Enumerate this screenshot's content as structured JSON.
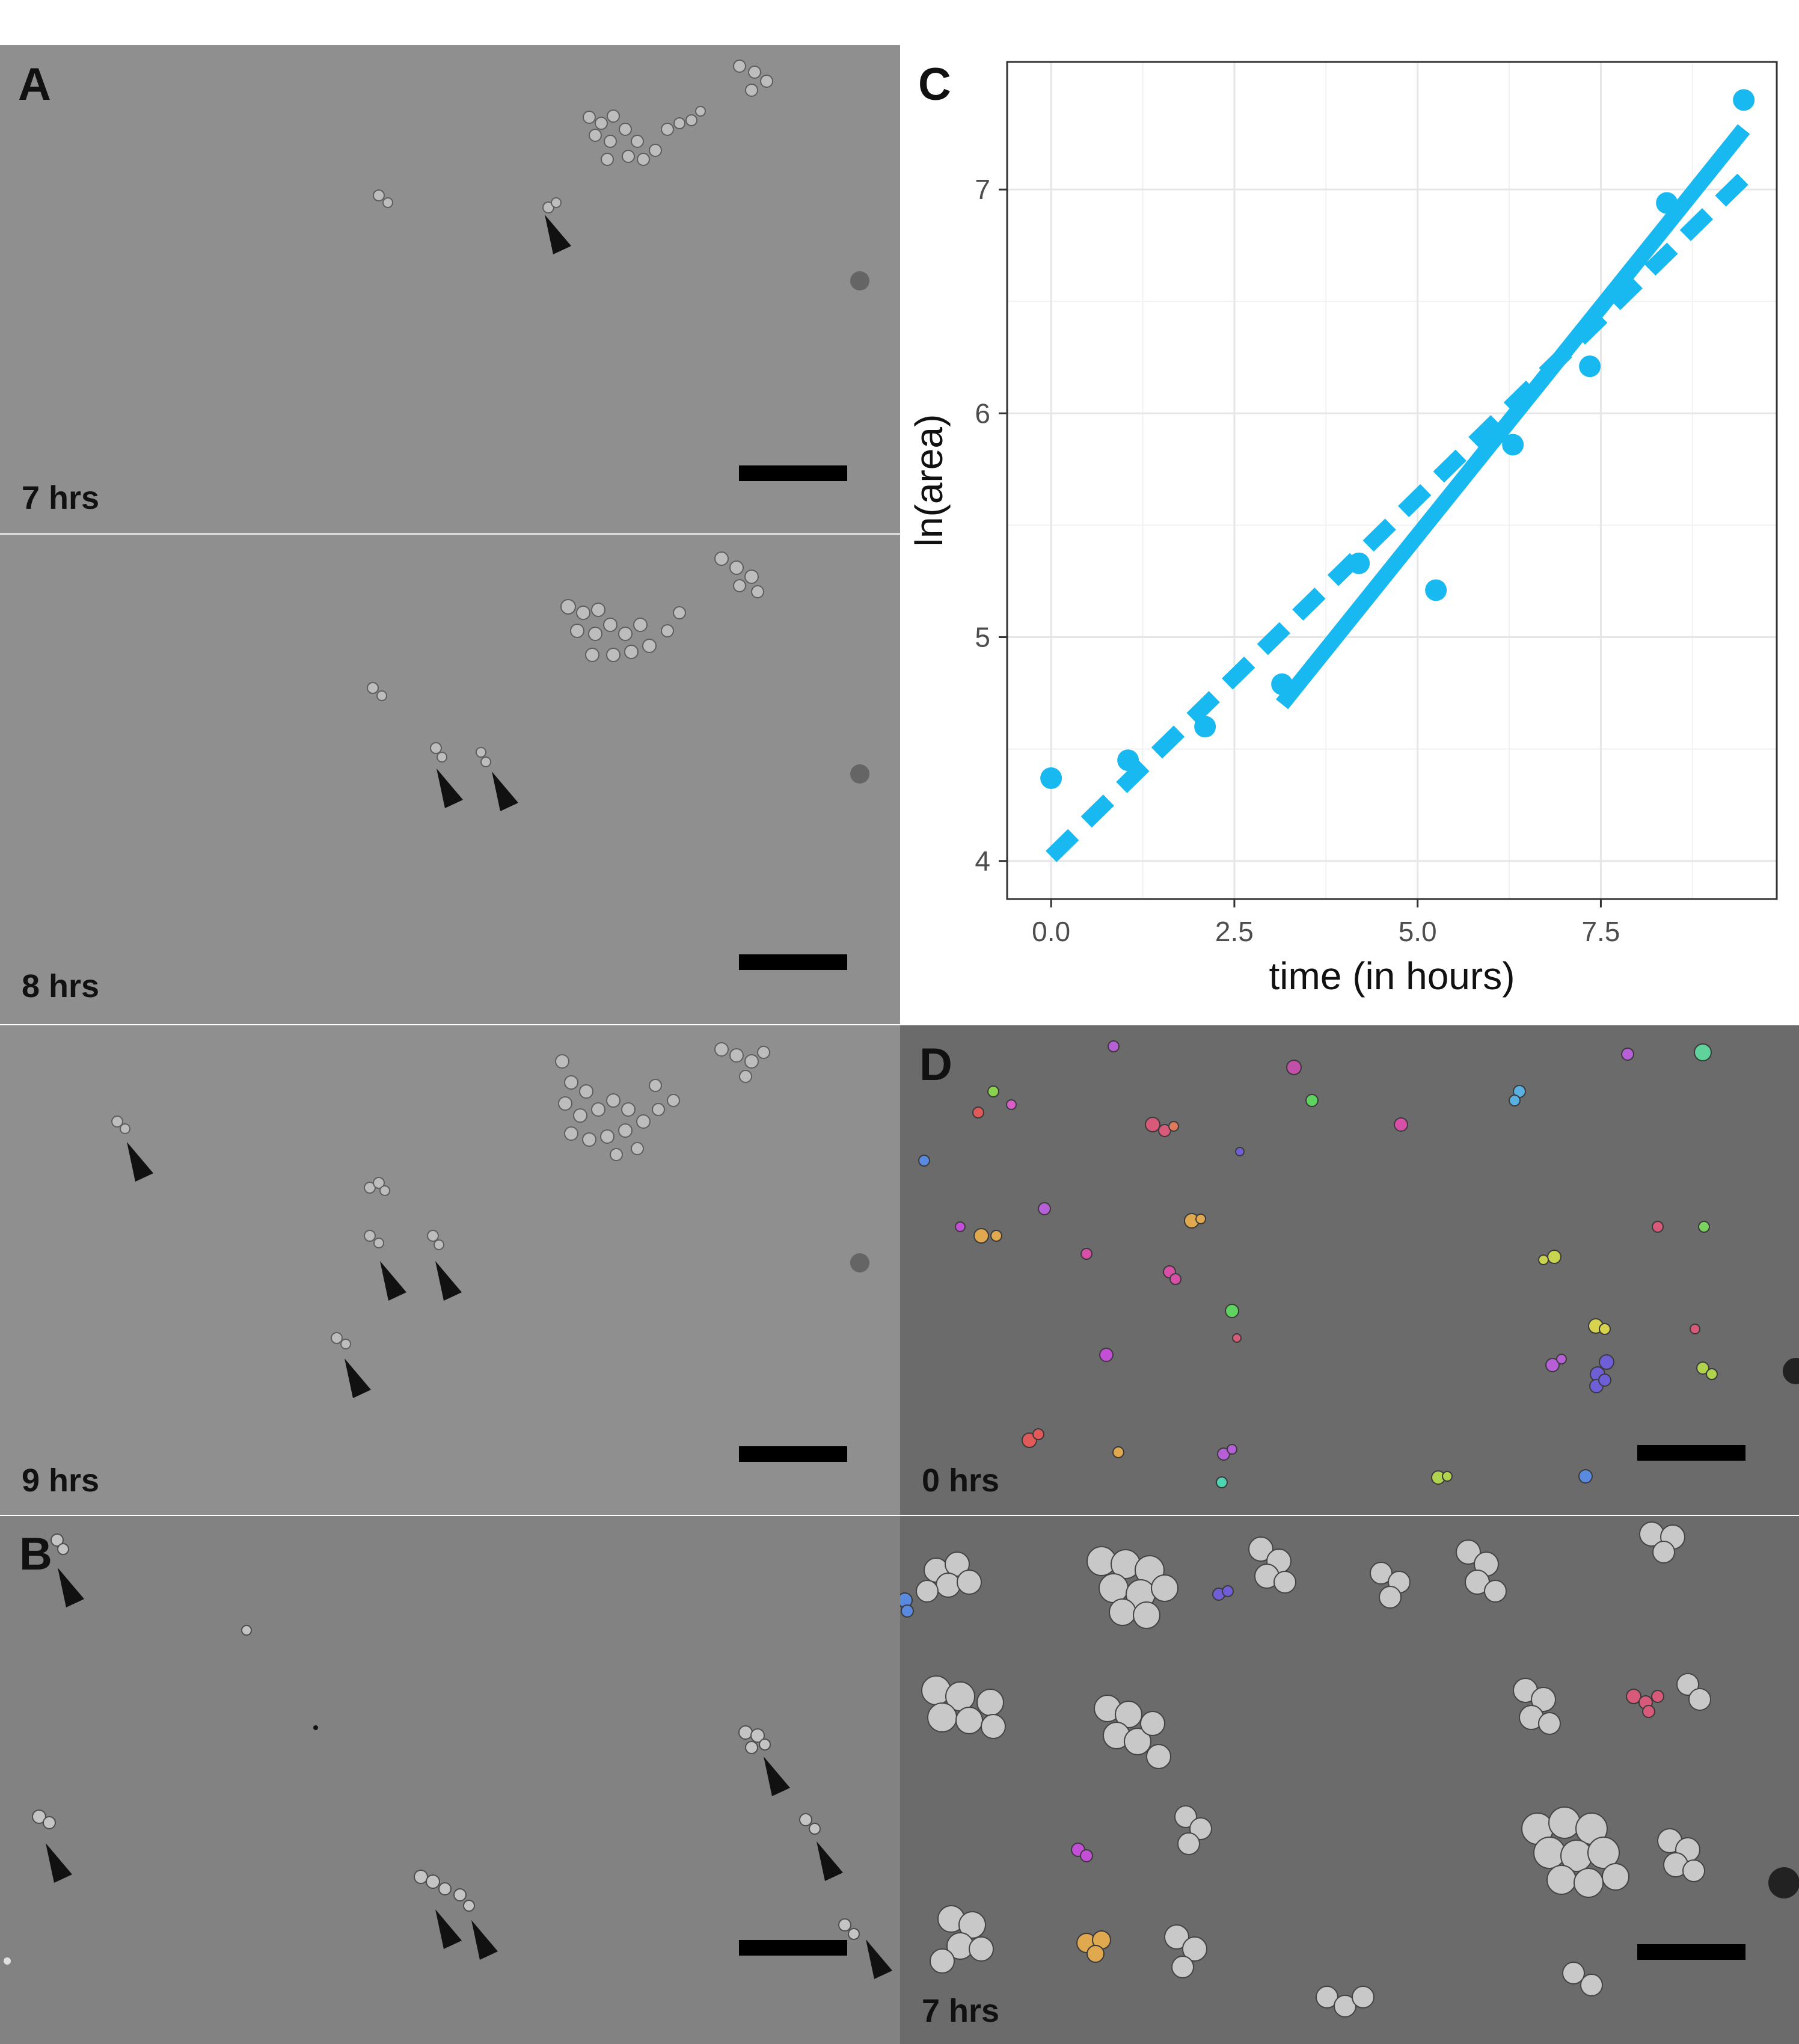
{
  "panel_labels": {
    "a": "A",
    "b": "B",
    "c": "C",
    "d": "D"
  },
  "time_labels": {
    "a1": "7 hrs",
    "a2": "8 hrs",
    "a3": "9 hrs",
    "d1": "0 hrs",
    "d2": "7 hrs"
  },
  "colors": {
    "series": "#18b8f0",
    "micro_light": "#8f8f8f",
    "micro_dark": "#6b6b6b",
    "scale_bar": "#000000"
  },
  "chart_data": {
    "type": "scatter",
    "xlabel": "time (in hours)",
    "ylabel": "ln(area)",
    "xlim": [
      -0.6,
      9.9
    ],
    "ylim": [
      3.83,
      7.57
    ],
    "xticks": [
      0.0,
      2.5,
      5.0,
      7.5
    ],
    "xtick_labels": [
      "0.0",
      "2.5",
      "5.0",
      "7.5"
    ],
    "yticks": [
      4,
      5,
      6,
      7
    ],
    "ytick_labels": [
      "4",
      "5",
      "6",
      "7"
    ],
    "grid": true,
    "points": {
      "x": [
        0.0,
        1.05,
        2.1,
        3.15,
        4.2,
        5.25,
        6.3,
        7.35,
        8.4,
        9.45
      ],
      "y": [
        4.37,
        4.45,
        4.6,
        4.79,
        5.33,
        5.21,
        5.86,
        6.21,
        6.94,
        7.4
      ]
    },
    "fits": [
      {
        "style": "dashed",
        "x": [
          0.0,
          9.45
        ],
        "y": [
          4.02,
          7.05
        ]
      },
      {
        "style": "solid",
        "x": [
          3.15,
          9.45
        ],
        "y": [
          4.7,
          7.27
        ]
      }
    ]
  }
}
